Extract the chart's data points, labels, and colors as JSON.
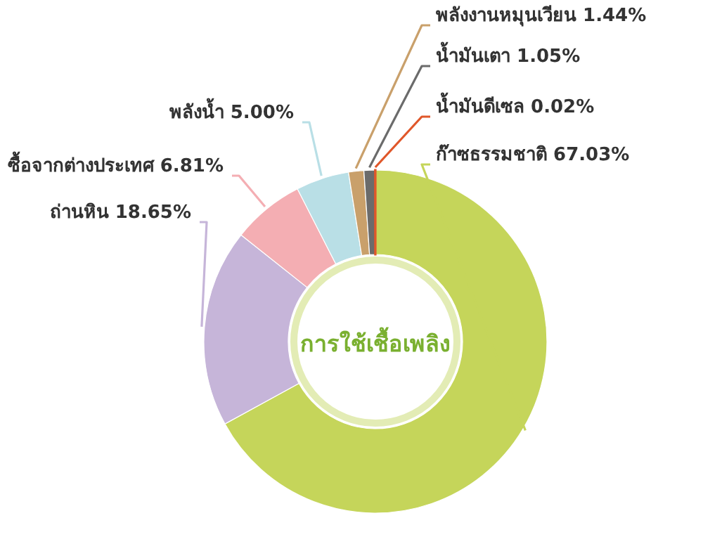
{
  "chart_data": {
    "type": "donut",
    "title": "การใช้เชื้อเพลิง",
    "categories": [
      "ก๊าซธรรมชาติ",
      "ถ่านหิน",
      "ซื้อจากต่างประเทศ",
      "พลังน้ำ",
      "พลังงานหมุนเวียน",
      "น้ำมันเตา",
      "น้ำมันดีเซล"
    ],
    "values": [
      67.03,
      18.65,
      6.81,
      5.0,
      1.44,
      1.05,
      0.02
    ],
    "value_labels": [
      "67.03%",
      "18.65%",
      "6.81%",
      "5.00%",
      "1.44%",
      "1.05%",
      "0.02%"
    ],
    "colors": [
      "#c5d55a",
      "#c6b5d9",
      "#f4aeb3",
      "#b9dfe6",
      "#c9a06b",
      "#6b6b6b",
      "#e0572a"
    ]
  }
}
